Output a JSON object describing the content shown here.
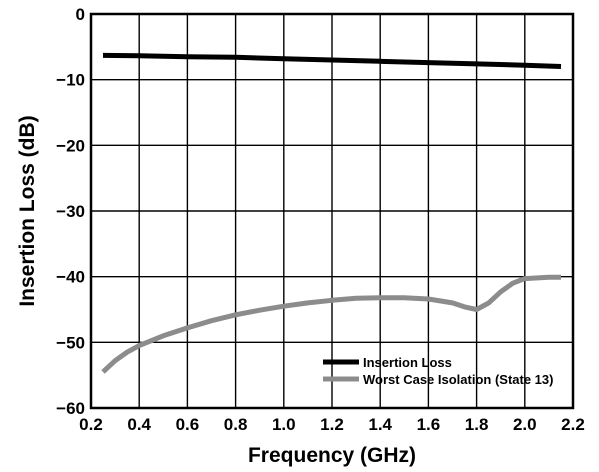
{
  "chart_data": {
    "type": "line",
    "xlabel": "Frequency (GHz)",
    "ylabel": "Insertion Loss (dB)",
    "xlim": [
      0.2,
      2.2
    ],
    "ylim": [
      -60,
      0
    ],
    "x_ticks": [
      0.2,
      0.4,
      0.6,
      0.8,
      1.0,
      1.2,
      1.4,
      1.6,
      1.8,
      2.0,
      2.2
    ],
    "x_tick_labels": [
      "0.2",
      "0.4",
      "0.6",
      "0.8",
      "1.0",
      "1.2",
      "1.4",
      "1.6",
      "1.8",
      "2.0",
      "2.2"
    ],
    "y_ticks": [
      0,
      -10,
      -20,
      -30,
      -40,
      -50,
      -60
    ],
    "y_tick_labels": [
      "0",
      "−10",
      "−20",
      "−30",
      "−40",
      "−50",
      "−60"
    ],
    "grid": true,
    "legend_position": "bottom-right",
    "series": [
      {
        "name": "Insertion Loss",
        "color": "#000000",
        "x": [
          0.25,
          0.4,
          0.6,
          0.8,
          1.0,
          1.2,
          1.4,
          1.6,
          1.8,
          2.0,
          2.15
        ],
        "y": [
          -6.3,
          -6.35,
          -6.5,
          -6.6,
          -6.8,
          -7.0,
          -7.2,
          -7.4,
          -7.6,
          -7.8,
          -8.0
        ]
      },
      {
        "name": "Worst Case Isolation (State 13)",
        "color": "#8c8c8c",
        "x": [
          0.25,
          0.3,
          0.35,
          0.4,
          0.5,
          0.6,
          0.7,
          0.8,
          0.9,
          1.0,
          1.1,
          1.2,
          1.3,
          1.4,
          1.5,
          1.6,
          1.7,
          1.75,
          1.8,
          1.85,
          1.9,
          1.95,
          2.0,
          2.1,
          2.15
        ],
        "y": [
          -54.5,
          -52.8,
          -51.5,
          -50.5,
          -49.0,
          -47.8,
          -46.7,
          -45.8,
          -45.1,
          -44.5,
          -44.0,
          -43.6,
          -43.3,
          -43.2,
          -43.2,
          -43.4,
          -44.0,
          -44.6,
          -45.0,
          -44.0,
          -42.3,
          -41.0,
          -40.3,
          -40.1,
          -40.1
        ]
      }
    ]
  }
}
